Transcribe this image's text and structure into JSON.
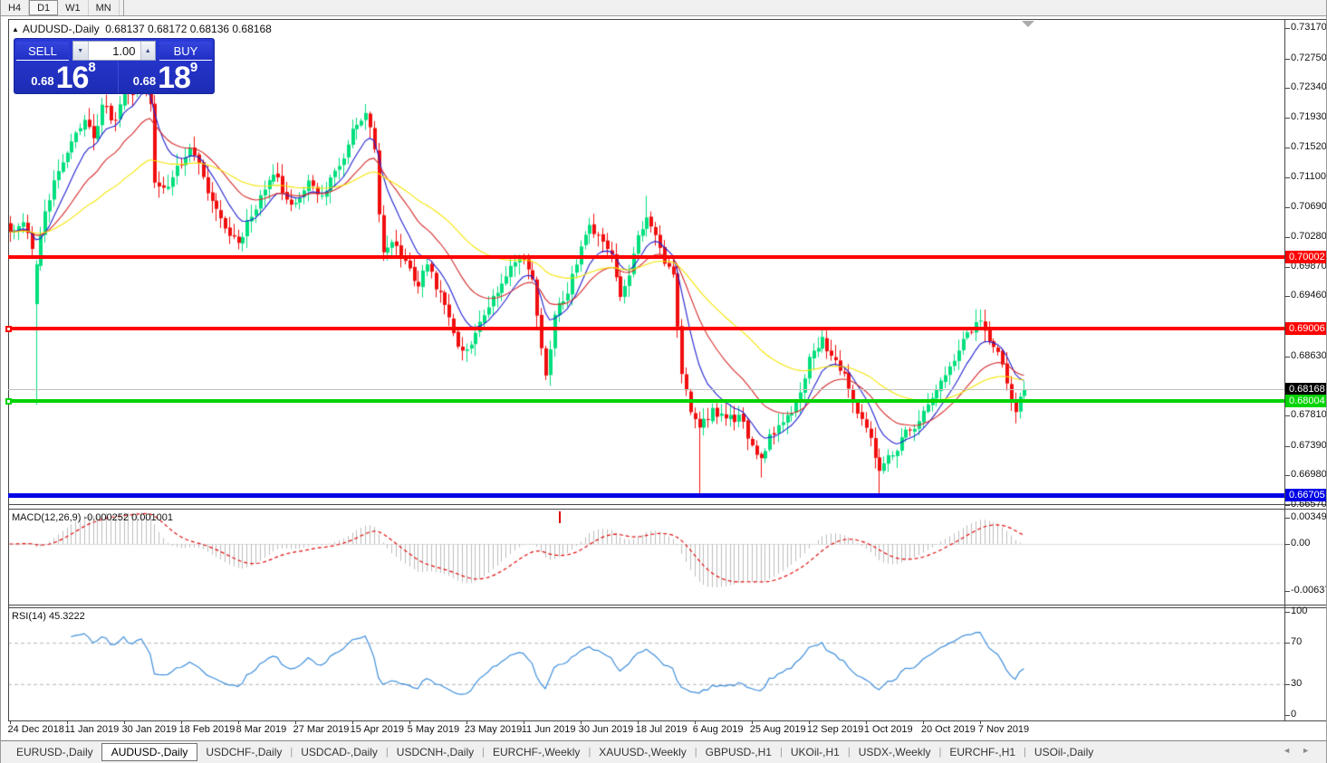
{
  "toolbar": {
    "timeframes": [
      {
        "label": "H4",
        "active": false
      },
      {
        "label": "D1",
        "active": true
      },
      {
        "label": "W1",
        "active": false
      },
      {
        "label": "MN",
        "active": false
      }
    ]
  },
  "chart": {
    "symbol_title": "AUDUSD-,Daily",
    "ohlc_text": "0.68137 0.68172 0.68136 0.68168",
    "marker_icon": "▲",
    "trade_panel": {
      "sell_label": "SELL",
      "buy_label": "BUY",
      "volume": "1.00",
      "spinner_down_icon": "▼",
      "spinner_up_icon": "▲",
      "sell_price": {
        "small": "0.68",
        "big": "16",
        "sup": "8"
      },
      "buy_price": {
        "small": "0.68",
        "big": "18",
        "sup": "9"
      }
    }
  },
  "chart_data": {
    "type": "candlestick",
    "symbol": "AUDUSD",
    "timeframe": "Daily",
    "last_ohlc": {
      "open": 0.68137,
      "high": 0.68172,
      "low": 0.68136,
      "close": 0.68168
    },
    "y_range": [
      0.6657,
      0.7317
    ],
    "price_axis_labels": [
      "0.73170",
      "0.72750",
      "0.72340",
      "0.71930",
      "0.71520",
      "0.71100",
      "0.70690",
      "0.70280",
      "0.69870",
      "0.69460",
      "0.68630",
      "0.67810",
      "0.67390",
      "0.66980",
      "0.66570"
    ],
    "highlight_levels": [
      {
        "label": "0.70002",
        "price": 0.70002,
        "color": "#ff0000",
        "line": "solid",
        "thickness": 4,
        "handle": false
      },
      {
        "label": "0.69006",
        "price": 0.69006,
        "color": "#ff0000",
        "line": "solid",
        "thickness": 4,
        "handle": true
      },
      {
        "label": "0.68168",
        "price": 0.68168,
        "color": "#000000",
        "line": "current",
        "thickness": 1,
        "line_color": "#c0c0c0",
        "handle": false
      },
      {
        "label": "0.68004",
        "price": 0.68004,
        "color": "#00d300",
        "line": "solid",
        "thickness": 4,
        "handle": true
      },
      {
        "label": "0.66705",
        "price": 0.66705,
        "color": "#0000e6",
        "line": "solid",
        "thickness": 5,
        "handle": false
      }
    ],
    "date_labels": [
      "24 Dec 2018",
      "11 Jan 2019",
      "30 Jan 2019",
      "18 Feb 2019",
      "8 Mar 2019",
      "27 Mar 2019",
      "15 Apr 2019",
      "5 May 2019",
      "23 May 2019",
      "11 Jun 2019",
      "30 Jun 2019",
      "18 Jul 2019",
      "6 Aug 2019",
      "25 Aug 2019",
      "12 Sep 2019",
      "1 Oct 2019",
      "20 Oct 2019",
      "7 Nov 2019"
    ],
    "bars_per_date_tick": 13,
    "bar_count": 232,
    "candle_colors": {
      "up": "#00df7d",
      "down": "#f10e0e"
    },
    "moving_averages": [
      {
        "period": 9,
        "color": "#1f1fd0"
      },
      {
        "period": 21,
        "color": "#d42a2a"
      },
      {
        "period": 50,
        "color": "#f5e400"
      }
    ],
    "price_path": [
      [
        0,
        0.7036
      ],
      [
        3,
        0.705
      ],
      [
        5,
        0.701
      ],
      [
        6,
        0.699
      ],
      [
        8,
        0.7065
      ],
      [
        11,
        0.712
      ],
      [
        14,
        0.716
      ],
      [
        17,
        0.719
      ],
      [
        19,
        0.7165
      ],
      [
        21,
        0.721
      ],
      [
        24,
        0.719
      ],
      [
        26,
        0.7245
      ],
      [
        28,
        0.7225
      ],
      [
        30,
        0.7258
      ],
      [
        32,
        0.721
      ],
      [
        33,
        0.7105
      ],
      [
        35,
        0.7095
      ],
      [
        38,
        0.7125
      ],
      [
        41,
        0.715
      ],
      [
        44,
        0.711
      ],
      [
        46,
        0.7078
      ],
      [
        49,
        0.704
      ],
      [
        52,
        0.702
      ],
      [
        54,
        0.705
      ],
      [
        57,
        0.7085
      ],
      [
        60,
        0.7115
      ],
      [
        62,
        0.709
      ],
      [
        65,
        0.7075
      ],
      [
        68,
        0.7105
      ],
      [
        71,
        0.7085
      ],
      [
        74,
        0.712
      ],
      [
        77,
        0.7155
      ],
      [
        79,
        0.7185
      ],
      [
        81,
        0.72
      ],
      [
        83,
        0.715
      ],
      [
        84,
        0.706
      ],
      [
        85,
        0.7005
      ],
      [
        87,
        0.702
      ],
      [
        89,
        0.7
      ],
      [
        91,
        0.6985
      ],
      [
        93,
        0.696
      ],
      [
        95,
        0.699
      ],
      [
        97,
        0.6955
      ],
      [
        99,
        0.6935
      ],
      [
        101,
        0.6895
      ],
      [
        103,
        0.687
      ],
      [
        105,
        0.688
      ],
      [
        107,
        0.691
      ],
      [
        109,
        0.693
      ],
      [
        111,
        0.695
      ],
      [
        113,
        0.6975
      ],
      [
        115,
        0.6992
      ],
      [
        117,
        0.6998
      ],
      [
        119,
        0.697
      ],
      [
        122,
        0.6838
      ],
      [
        124,
        0.692
      ],
      [
        127,
        0.695
      ],
      [
        129,
        0.699
      ],
      [
        132,
        0.7045
      ],
      [
        134,
        0.703
      ],
      [
        137,
        0.7005
      ],
      [
        139,
        0.6945
      ],
      [
        141,
        0.6975
      ],
      [
        143,
        0.703
      ],
      [
        145,
        0.7055
      ],
      [
        147,
        0.703
      ],
      [
        149,
        0.699
      ],
      [
        151,
        0.6975
      ],
      [
        153,
        0.684
      ],
      [
        155,
        0.6785
      ],
      [
        157,
        0.6765
      ],
      [
        160,
        0.679
      ],
      [
        163,
        0.6775
      ],
      [
        166,
        0.678
      ],
      [
        169,
        0.674
      ],
      [
        171,
        0.672
      ],
      [
        173,
        0.6755
      ],
      [
        176,
        0.677
      ],
      [
        179,
        0.68
      ],
      [
        182,
        0.686
      ],
      [
        185,
        0.689
      ],
      [
        187,
        0.6865
      ],
      [
        190,
        0.684
      ],
      [
        193,
        0.6785
      ],
      [
        196,
        0.675
      ],
      [
        198,
        0.6705
      ],
      [
        201,
        0.6725
      ],
      [
        204,
        0.676
      ],
      [
        207,
        0.6775
      ],
      [
        210,
        0.6805
      ],
      [
        213,
        0.6835
      ],
      [
        216,
        0.687
      ],
      [
        218,
        0.6895
      ],
      [
        220,
        0.691
      ],
      [
        222,
        0.69
      ],
      [
        224,
        0.6875
      ],
      [
        226,
        0.685
      ],
      [
        228,
        0.6805
      ],
      [
        229,
        0.6785
      ],
      [
        230,
        0.6805
      ],
      [
        231,
        0.68168
      ]
    ],
    "special_lows": [
      [
        6,
        0.6796
      ],
      [
        122,
        0.683
      ],
      [
        157,
        0.6672
      ],
      [
        171,
        0.6695
      ],
      [
        198,
        0.6672
      ],
      [
        229,
        0.677
      ]
    ],
    "special_highs": [
      [
        30,
        0.727
      ],
      [
        145,
        0.7085
      ],
      [
        220,
        0.6928
      ]
    ],
    "special_candles": [
      {
        "i": 6,
        "open": 0.6935,
        "close": 0.699
      }
    ],
    "macd": {
      "title": "MACD(12,26,9) -0.000252 0.001001",
      "params": [
        12,
        26,
        9
      ],
      "value": -0.000252,
      "signal_value": 0.001001,
      "axis_labels": [
        {
          "text": "0.00349",
          "value": 0.00349
        },
        {
          "text": "0.00",
          "value": 0
        },
        {
          "text": "-0.00637",
          "value": -0.00637
        }
      ],
      "histogram_color": "#bdbdbd",
      "signal_color": "#e01010",
      "marker_bar": 125
    },
    "rsi": {
      "title": "RSI(14) 45.3222",
      "period": 14,
      "value": 45.3222,
      "axis_labels": [
        "100",
        "70",
        "30",
        "0"
      ],
      "levels": [
        70,
        30
      ],
      "line_color": "#3f8fdc",
      "level_color": "#b4b4b4"
    }
  },
  "tabs": {
    "items": [
      {
        "label": "EURUSD-,Daily",
        "active": false
      },
      {
        "label": "AUDUSD-,Daily",
        "active": true
      },
      {
        "label": "USDCHF-,Daily",
        "active": false
      },
      {
        "label": "USDCAD-,Daily",
        "active": false
      },
      {
        "label": "USDCNH-,Daily",
        "active": false
      },
      {
        "label": "EURCHF-,Weekly",
        "active": false
      },
      {
        "label": "XAUUSD-,Weekly",
        "active": false
      },
      {
        "label": "GBPUSD-,H1",
        "active": false
      },
      {
        "label": "UKOil-,H1",
        "active": false
      },
      {
        "label": "USDX-,Weekly",
        "active": false
      },
      {
        "label": "EURCHF-,H1",
        "active": false
      },
      {
        "label": "USOil-,Daily",
        "active": false
      }
    ],
    "scroll_left_icon": "◄",
    "scroll_right_icon": "►"
  }
}
